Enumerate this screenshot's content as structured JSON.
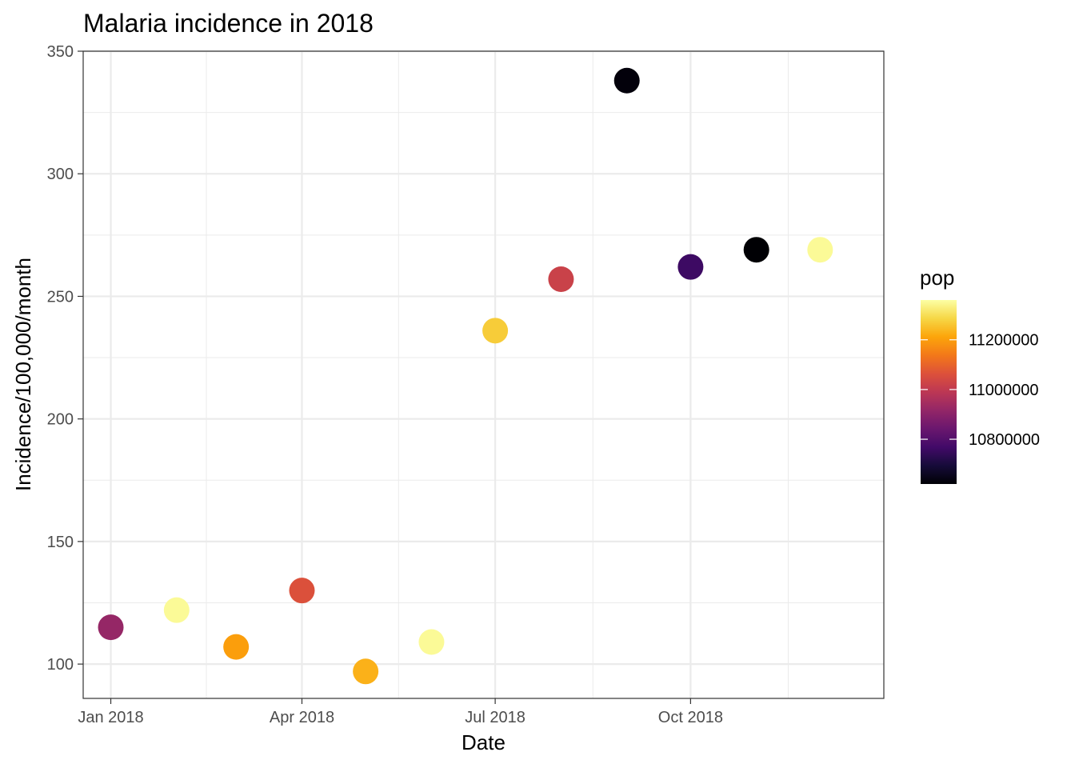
{
  "chart_data": {
    "type": "scatter",
    "title": "Malaria incidence in 2018",
    "xlabel": "Date",
    "ylabel": "Incidence/100,000/month",
    "x_ticks": [
      {
        "date": "2018-01-01",
        "label": "Jan 2018"
      },
      {
        "date": "2018-04-01",
        "label": "Apr 2018"
      },
      {
        "date": "2018-07-01",
        "label": "Jul 2018"
      },
      {
        "date": "2018-10-01",
        "label": "Oct 2018"
      }
    ],
    "xlim": [
      "2017-12-19",
      "2018-12-31"
    ],
    "y_ticks": [
      100,
      150,
      200,
      250,
      300,
      350
    ],
    "ylim": [
      86,
      350
    ],
    "grid": true,
    "color_scale": {
      "name": "pop",
      "palette": "inferno",
      "range": [
        10620000,
        11360000
      ],
      "breaks": [
        10800000,
        11000000,
        11200000
      ],
      "break_labels": [
        "10800000",
        "11000000",
        "11200000"
      ],
      "legend_position": "right"
    },
    "points": [
      {
        "x": "2018-01-01",
        "y": 115,
        "pop": 10920000
      },
      {
        "x": "2018-02-01",
        "y": 122,
        "pop": 11350000
      },
      {
        "x": "2018-03-01",
        "y": 107,
        "pop": 11200000
      },
      {
        "x": "2018-04-01",
        "y": 130,
        "pop": 11060000
      },
      {
        "x": "2018-05-01",
        "y": 97,
        "pop": 11230000
      },
      {
        "x": "2018-06-01",
        "y": 109,
        "pop": 11350000
      },
      {
        "x": "2018-07-01",
        "y": 236,
        "pop": 11270000
      },
      {
        "x": "2018-08-01",
        "y": 257,
        "pop": 11020000
      },
      {
        "x": "2018-09-01",
        "y": 338,
        "pop": 10630000
      },
      {
        "x": "2018-10-01",
        "y": 262,
        "pop": 10760000
      },
      {
        "x": "2018-11-01",
        "y": 269,
        "pop": 10620000
      },
      {
        "x": "2018-12-01",
        "y": 269,
        "pop": 11350000
      }
    ]
  }
}
